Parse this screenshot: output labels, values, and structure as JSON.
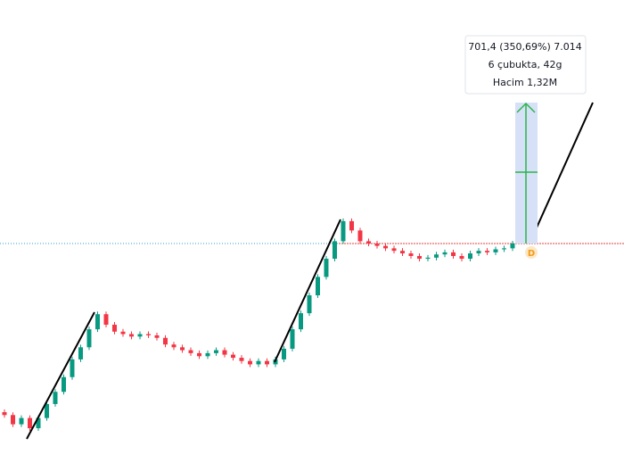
{
  "chart_data": {
    "type": "candlestick",
    "log": true,
    "ylim": [
      17.6,
      2698
    ],
    "up_color": "#089981",
    "down_color": "#f23645",
    "open": [
      33,
      32,
      29,
      31,
      27.8,
      31,
      36,
      41,
      48,
      58,
      66,
      80,
      94,
      84,
      78,
      76,
      74,
      76,
      75,
      73,
      68,
      66,
      64,
      62,
      60,
      62,
      64,
      61,
      59,
      57,
      55,
      57,
      55,
      58,
      65,
      80,
      95,
      115,
      140,
      170,
      205,
      254,
      230,
      205,
      200,
      195,
      190,
      185,
      180,
      175,
      170,
      172,
      178,
      182,
      175,
      170,
      180,
      185,
      182,
      188,
      190
    ],
    "close": [
      32,
      29,
      31,
      27.8,
      31,
      36,
      41,
      48,
      58,
      66,
      80,
      94,
      84,
      78,
      76,
      74,
      76,
      75,
      73,
      68,
      66,
      64,
      62,
      60,
      62,
      64,
      61,
      59,
      57,
      55,
      57,
      55,
      58,
      65,
      80,
      95,
      115,
      140,
      170,
      205,
      254,
      230,
      205,
      200,
      195,
      190,
      185,
      180,
      175,
      170,
      172,
      178,
      182,
      175,
      170,
      180,
      185,
      182,
      188,
      190,
      200
    ],
    "tooltip": [
      "701,4 (350,69%) 7.014",
      "6 çubukta, 42g",
      "Hacim 1,32M"
    ],
    "marker": "D"
  }
}
